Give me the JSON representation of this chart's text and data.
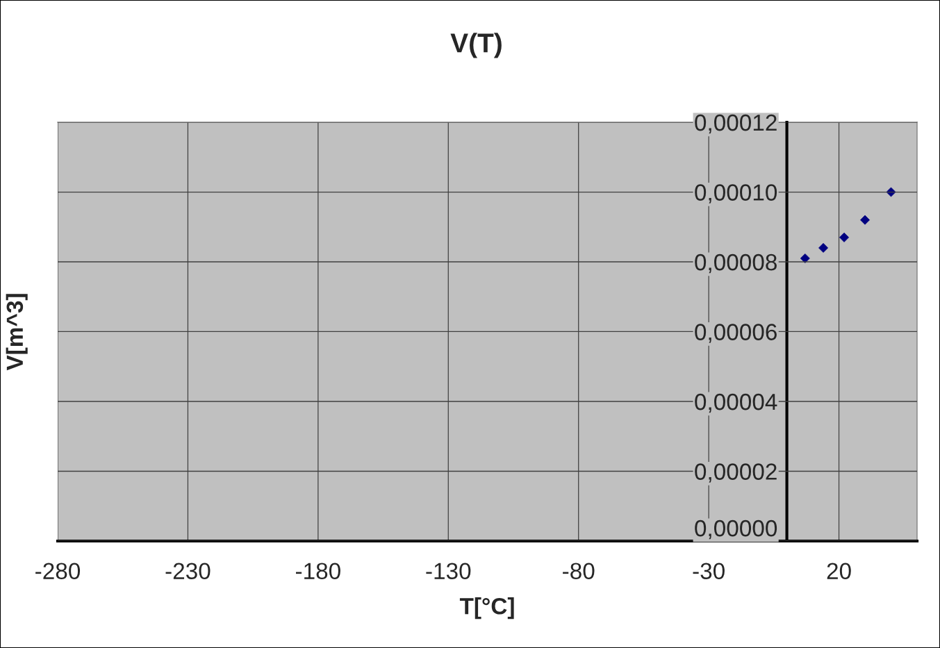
{
  "chart_data": {
    "type": "scatter",
    "title": "V(T)",
    "xlabel": "T[°C]",
    "ylabel": "V[m^3]",
    "x": [
      7,
      14,
      22,
      30,
      40
    ],
    "series": [
      {
        "color": "#000080",
        "values": [
          8.1e-05,
          8.4e-05,
          8.7e-05,
          9.2e-05,
          0.0001
        ]
      }
    ],
    "marker": "diamond",
    "grid": true,
    "legend": false,
    "xlim": [
      -280,
      50
    ],
    "xticks": [
      -280,
      -230,
      -180,
      -130,
      -80,
      -30,
      20
    ],
    "ylim": [
      0,
      0.00012
    ],
    "yticks": [
      {
        "value": 0,
        "label": "0,00000"
      },
      {
        "value": 2e-05,
        "label": "0,00002"
      },
      {
        "value": 4e-05,
        "label": "0,00004"
      },
      {
        "value": 6e-05,
        "label": "0,00006"
      },
      {
        "value": 8e-05,
        "label": "0,00008"
      },
      {
        "value": 0.0001,
        "label": "0,00010"
      },
      {
        "value": 0.00012,
        "label": "0,00012"
      }
    ]
  }
}
